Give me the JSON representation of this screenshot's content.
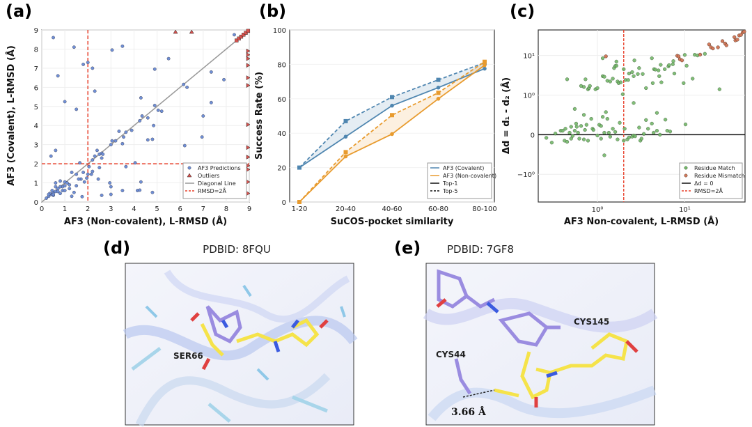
{
  "panel_labels": {
    "a": "(a)",
    "b": "(b)",
    "c": "(c)",
    "d": "(d)",
    "e": "(e)"
  },
  "chart_data": [
    {
      "type": "scatter",
      "panel": "a",
      "xlabel": "AF3 (Non-covalent), L-RMSD (Å)",
      "ylabel": "AF3 (Covalent), L-RMSD (Å)",
      "xlim": [
        0,
        9
      ],
      "ylim": [
        0,
        9
      ],
      "xticks": [
        "0",
        "1",
        "2",
        "3",
        "4",
        "5",
        "6",
        "7",
        "8",
        "9"
      ],
      "yticks": [
        "0",
        "1",
        "2",
        "3",
        "4",
        "5",
        "6",
        "7",
        "8",
        "9"
      ],
      "threshold": 2,
      "legend": [
        "AF3 Predictions",
        "Outliers",
        "Diagonal Line",
        "RMSD=2Å"
      ],
      "legend_position": "bottom-right",
      "colors": {
        "points": "#6f8fd6",
        "outliers": "#d9534f",
        "diagonal": "#999999",
        "threshold": "#e8412c"
      },
      "points": [
        [
          0.5,
          8.6
        ],
        [
          1.4,
          8.1
        ],
        [
          1.8,
          7.2
        ],
        [
          2.0,
          7.3
        ],
        [
          2.2,
          7.0
        ],
        [
          0.7,
          6.6
        ],
        [
          2.3,
          5.8
        ],
        [
          1.0,
          5.25
        ],
        [
          1.5,
          4.85
        ],
        [
          3.05,
          7.95
        ],
        [
          3.5,
          8.15
        ],
        [
          5.5,
          7.5
        ],
        [
          4.9,
          6.95
        ],
        [
          7.35,
          6.8
        ],
        [
          7.9,
          6.4
        ],
        [
          6.15,
          6.15
        ],
        [
          6.3,
          6.0
        ],
        [
          4.3,
          5.45
        ],
        [
          4.9,
          5.05
        ],
        [
          5.05,
          4.8
        ],
        [
          5.2,
          4.75
        ],
        [
          7.35,
          5.2
        ],
        [
          7.0,
          4.5
        ],
        [
          4.35,
          4.5
        ],
        [
          4.25,
          4.25
        ],
        [
          4.6,
          4.4
        ],
        [
          4.85,
          4.0
        ],
        [
          3.35,
          3.7
        ],
        [
          3.65,
          3.65
        ],
        [
          3.9,
          3.75
        ],
        [
          3.55,
          3.4
        ],
        [
          4.6,
          3.25
        ],
        [
          4.8,
          3.28
        ],
        [
          3.5,
          3.05
        ],
        [
          6.95,
          3.4
        ],
        [
          6.2,
          2.95
        ],
        [
          3.05,
          3.2
        ],
        [
          3.2,
          3.2
        ],
        [
          3.0,
          3.0
        ],
        [
          0.6,
          2.7
        ],
        [
          0.4,
          2.4
        ],
        [
          2.4,
          2.7
        ],
        [
          2.5,
          2.5
        ],
        [
          2.6,
          2.55
        ],
        [
          2.65,
          2.5
        ],
        [
          2.6,
          2.3
        ],
        [
          2.3,
          2.4
        ],
        [
          2.2,
          2.2
        ],
        [
          1.65,
          2.05
        ],
        [
          4.05,
          2.05
        ],
        [
          2.05,
          1.85
        ],
        [
          2.5,
          1.8
        ],
        [
          3.65,
          1.85
        ],
        [
          2.2,
          1.6
        ],
        [
          1.8,
          1.55
        ],
        [
          1.3,
          1.55
        ],
        [
          1.5,
          1.45
        ],
        [
          2.0,
          1.45
        ],
        [
          2.15,
          1.45
        ],
        [
          1.95,
          1.25
        ],
        [
          1.7,
          1.2
        ],
        [
          1.6,
          1.2
        ],
        [
          2.45,
          1.2
        ],
        [
          1.85,
          1.05
        ],
        [
          1.0,
          1.05
        ],
        [
          0.8,
          1.1
        ],
        [
          0.6,
          1.0
        ],
        [
          2.95,
          1.0
        ],
        [
          4.3,
          1.05
        ],
        [
          3.0,
          0.8
        ],
        [
          1.5,
          0.85
        ],
        [
          1.2,
          0.9
        ],
        [
          0.9,
          0.8
        ],
        [
          3.5,
          0.6
        ],
        [
          4.15,
          0.6
        ],
        [
          4.25,
          0.62
        ],
        [
          4.8,
          0.5
        ],
        [
          3.0,
          0.4
        ],
        [
          2.6,
          0.35
        ],
        [
          1.75,
          0.28
        ],
        [
          1.3,
          0.3
        ],
        [
          1.4,
          0.5
        ],
        [
          0.5,
          0.5
        ],
        [
          0.4,
          0.4
        ],
        [
          0.3,
          0.3
        ],
        [
          0.5,
          0.35
        ],
        [
          0.45,
          0.6
        ],
        [
          0.7,
          0.7
        ],
        [
          0.8,
          0.8
        ],
        [
          1.0,
          0.85
        ],
        [
          1.1,
          1.0
        ],
        [
          0.6,
          0.55
        ],
        [
          0.35,
          0.45
        ],
        [
          0.5,
          0.4
        ],
        [
          0.7,
          0.55
        ],
        [
          0.9,
          0.6
        ],
        [
          1.2,
          0.7
        ],
        [
          1.0,
          0.6
        ],
        [
          0.8,
          0.45
        ],
        [
          0.2,
          0.2
        ],
        [
          0.3,
          0.4
        ],
        [
          0.6,
          0.8
        ],
        [
          8.35,
          8.75
        ]
      ],
      "outliers_top": [
        [
          5.8,
          9
        ],
        [
          6.5,
          9
        ]
      ],
      "outliers_right": [
        [
          9,
          7.9
        ],
        [
          9,
          7.7
        ],
        [
          9,
          7.5
        ],
        [
          9,
          7.15
        ],
        [
          9,
          6.5
        ],
        [
          9,
          6.1
        ],
        [
          9,
          4.05
        ],
        [
          9,
          2.85
        ],
        [
          9,
          2.35
        ],
        [
          9,
          1.9
        ],
        [
          9,
          1.7
        ],
        [
          9,
          1.05
        ],
        [
          9,
          0.45
        ]
      ],
      "outliers_diag": [
        [
          8.45,
          8.45
        ],
        [
          8.55,
          8.55
        ],
        [
          8.65,
          8.65
        ],
        [
          8.75,
          8.75
        ],
        [
          8.85,
          8.85
        ],
        [
          8.95,
          8.95
        ]
      ]
    },
    {
      "type": "line",
      "panel": "b",
      "xlabel": "SuCOS-pocket similarity",
      "ylabel": "Success Rate (%)",
      "categories": [
        "1-20",
        "20-40",
        "40-60",
        "60-80",
        "80-100"
      ],
      "ylim": [
        0,
        100
      ],
      "yticks": [
        "0",
        "20",
        "40",
        "60",
        "80",
        "100"
      ],
      "legend": [
        "AF3 (Covalent)",
        "AF3 (Non-covalent)",
        "Top-1",
        "Top-5"
      ],
      "legend_position": "bottom-right",
      "series": [
        {
          "name": "AF3 (Covalent) Top-1",
          "color": "#4f86b0",
          "style": "solid",
          "values": [
            20,
            38,
            56,
            66.5,
            77.5
          ]
        },
        {
          "name": "AF3 (Covalent) Top-5",
          "color": "#4f86b0",
          "style": "dashed",
          "values": [
            20,
            47,
            61,
            71,
            81
          ]
        },
        {
          "name": "AF3 (Non-covalent) Top-1",
          "color": "#e89b2e",
          "style": "solid",
          "values": [
            0,
            26.5,
            39.5,
            60,
            79.5
          ]
        },
        {
          "name": "AF3 (Non-covalent) Top-5",
          "color": "#e89b2e",
          "style": "dashed",
          "values": [
            0,
            29,
            50.5,
            63.5,
            81.5
          ]
        }
      ]
    },
    {
      "type": "scatter",
      "panel": "c",
      "xlabel": "AF3 Non-covalent, L-RMSD (Å)",
      "ylabel": "Δd = d₁ - d₂ (Å)",
      "xscale": "log",
      "yscale": "symlog",
      "xlim": [
        0.21,
        49
      ],
      "ylim": [
        -5,
        44
      ],
      "xticks": [
        "10⁰",
        "10¹"
      ],
      "yticks": [
        "−10⁰",
        "0",
        "10⁰",
        "10¹"
      ],
      "threshold": 2,
      "legend": [
        "Residue Match",
        "Residue Mismatch",
        "Δd = 0",
        "RMSD=2Å"
      ],
      "legend_position": "bottom-right",
      "colors": {
        "match": "#74b86a",
        "mismatch": "#d27a5c",
        "zero": "#111111",
        "threshold": "#e8412c"
      },
      "match": [
        [
          0.45,
          2.5
        ],
        [
          0.65,
          1.7
        ],
        [
          0.7,
          1.6
        ],
        [
          0.73,
          2.5
        ],
        [
          0.78,
          1.4
        ],
        [
          0.8,
          1.5
        ],
        [
          0.82,
          1.7
        ],
        [
          0.95,
          1.4
        ],
        [
          1.0,
          1.5
        ],
        [
          1.15,
          3
        ],
        [
          1.2,
          2.9
        ],
        [
          1.15,
          8.5
        ],
        [
          1.3,
          2.3
        ],
        [
          1.4,
          2.2
        ],
        [
          1.5,
          2.6
        ],
        [
          1.55,
          4.8
        ],
        [
          1.6,
          5.4
        ],
        [
          1.65,
          5.5
        ],
        [
          1.65,
          7
        ],
        [
          1.7,
          2.2
        ],
        [
          1.75,
          2.0
        ],
        [
          1.85,
          2.1
        ],
        [
          1.95,
          1.05
        ],
        [
          2.0,
          4.5
        ],
        [
          2.1,
          2.4
        ],
        [
          2.25,
          2.4
        ],
        [
          2.3,
          3.5
        ],
        [
          2.5,
          3.8
        ],
        [
          2.6,
          3
        ],
        [
          2.65,
          7.5
        ],
        [
          2.9,
          3.4
        ],
        [
          3.0,
          4.8
        ],
        [
          3.3,
          3.4
        ],
        [
          3.6,
          1.5
        ],
        [
          4.2,
          8.5
        ],
        [
          4.3,
          2.0
        ],
        [
          4.45,
          4.5
        ],
        [
          4.6,
          4.4
        ],
        [
          5,
          4.2
        ],
        [
          5.1,
          3
        ],
        [
          5.3,
          5.8
        ],
        [
          5.4,
          2.1
        ],
        [
          5.9,
          4.5
        ],
        [
          6.5,
          5.3
        ],
        [
          6.6,
          5.7
        ],
        [
          7.3,
          6
        ],
        [
          7.4,
          7.2
        ],
        [
          7.6,
          3.5
        ],
        [
          9.7,
          2
        ],
        [
          10,
          10.3
        ],
        [
          10.5,
          5.5
        ],
        [
          12.3,
          2.6
        ],
        [
          13,
          10.4
        ],
        [
          14,
          10
        ],
        [
          17,
          11
        ],
        [
          25,
          1.4
        ],
        [
          2.6,
          0.8
        ],
        [
          4.8,
          0.55
        ],
        [
          0.55,
          0.65
        ],
        [
          0.7,
          0.5
        ],
        [
          0.26,
          -0.08
        ],
        [
          0.3,
          -0.2
        ],
        [
          0.33,
          0.03
        ],
        [
          0.38,
          0.1
        ],
        [
          0.4,
          0.1
        ],
        [
          0.42,
          -0.15
        ],
        [
          0.43,
          0.15
        ],
        [
          0.45,
          -0.18
        ],
        [
          0.48,
          0.05
        ],
        [
          0.5,
          0.2
        ],
        [
          0.5,
          -0.1
        ],
        [
          0.52,
          -0.03
        ],
        [
          0.55,
          0.1
        ],
        [
          0.57,
          0.28
        ],
        [
          0.58,
          0.2
        ],
        [
          0.6,
          0.05
        ],
        [
          0.62,
          -0.1
        ],
        [
          0.65,
          0.22
        ],
        [
          0.7,
          -0.12
        ],
        [
          0.72,
          0.12
        ],
        [
          0.75,
          0.25
        ],
        [
          0.78,
          -0.15
        ],
        [
          0.85,
          0.4
        ],
        [
          0.88,
          0.15
        ],
        [
          0.9,
          0.12
        ],
        [
          1.0,
          -0.02
        ],
        [
          1.05,
          0.25
        ],
        [
          1.1,
          0.22
        ],
        [
          1.1,
          -0.1
        ],
        [
          1.15,
          0.45
        ],
        [
          1.2,
          0.05
        ],
        [
          1.25,
          0.57
        ],
        [
          1.3,
          0.4
        ],
        [
          1.35,
          0.05
        ],
        [
          1.4,
          -0.05
        ],
        [
          1.5,
          0.15
        ],
        [
          1.6,
          0.07
        ],
        [
          1.7,
          -0.12
        ],
        [
          1.8,
          0.3
        ],
        [
          2.0,
          -0.15
        ],
        [
          2.05,
          0.15
        ],
        [
          2.2,
          -0.12
        ],
        [
          2.3,
          -0.07
        ],
        [
          2.5,
          -0.05
        ],
        [
          2.6,
          -0.02
        ],
        [
          2.7,
          -0.04
        ],
        [
          3,
          0.18
        ],
        [
          3.1,
          -0.15
        ],
        [
          3.2,
          -0.1
        ],
        [
          3.4,
          0.02
        ],
        [
          3.6,
          0.37
        ],
        [
          3.8,
          0.15
        ],
        [
          4.2,
          0.28
        ],
        [
          4.4,
          0.05
        ],
        [
          4.8,
          0.1
        ],
        [
          5.2,
          0
        ],
        [
          6,
          0.38
        ],
        [
          6.3,
          0.1
        ],
        [
          6.8,
          0.08
        ],
        [
          10.2,
          0.26
        ],
        [
          1.2,
          -0.52
        ]
      ],
      "mismatch": [
        [
          1.25,
          9.5
        ],
        [
          8.2,
          9.8
        ],
        [
          8.5,
          9.5
        ],
        [
          8.8,
          8
        ],
        [
          9.3,
          7.5
        ],
        [
          15,
          10.5
        ],
        [
          19,
          19
        ],
        [
          20,
          16
        ],
        [
          21,
          15
        ],
        [
          24,
          16
        ],
        [
          27,
          23
        ],
        [
          29,
          20
        ],
        [
          30,
          18
        ],
        [
          37,
          29
        ],
        [
          38,
          24
        ],
        [
          40,
          25
        ],
        [
          42,
          32
        ],
        [
          44,
          33
        ],
        [
          46,
          38
        ],
        [
          48,
          40
        ]
      ]
    }
  ],
  "structures": {
    "d": {
      "title": "PDBID: 8FQU",
      "residue": "SER66"
    },
    "e": {
      "title": "PDBID: 7GF8",
      "residues": [
        "CYS145",
        "CYS44"
      ],
      "distance": "3.66 Å"
    }
  }
}
